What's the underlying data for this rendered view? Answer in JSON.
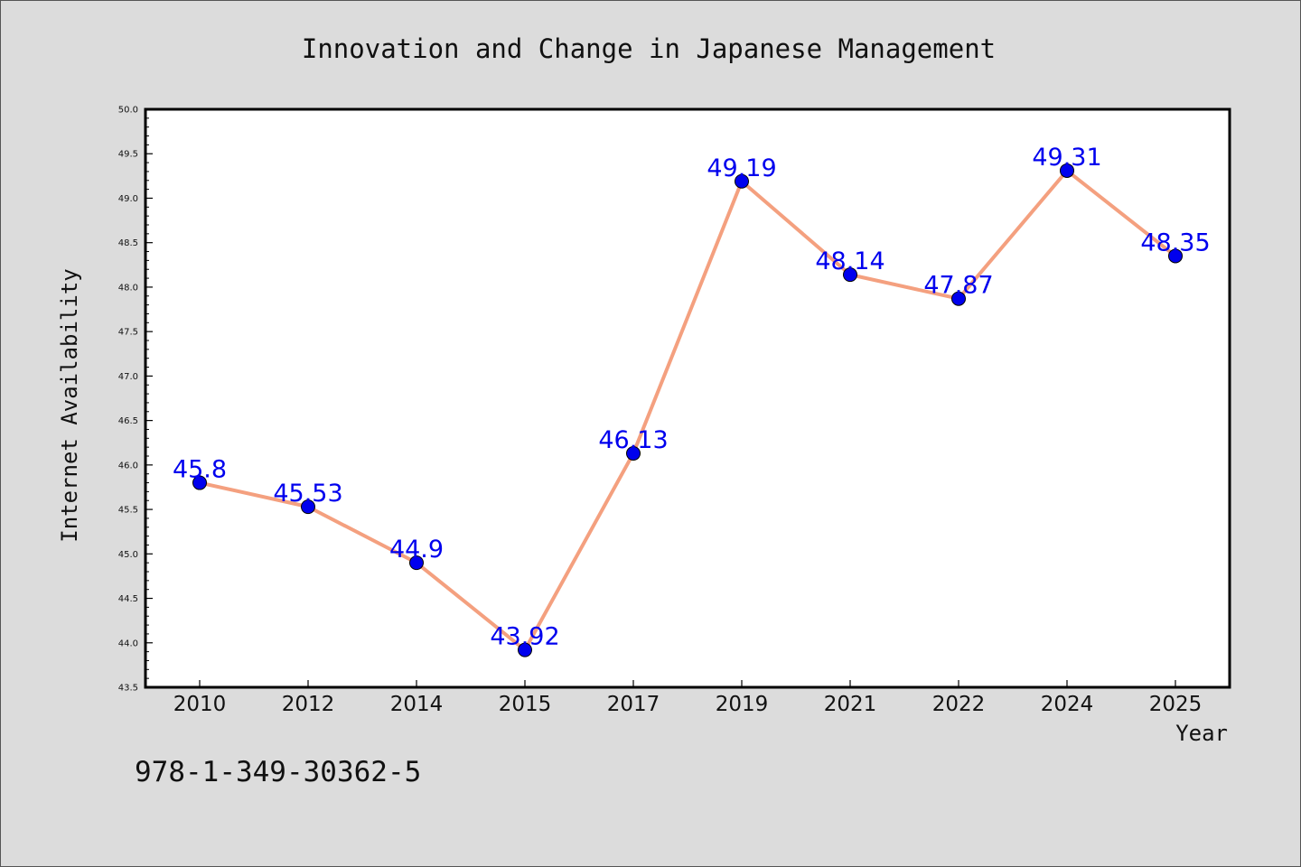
{
  "chart_data": {
    "type": "line",
    "title": "Innovation and Change in Japanese Management",
    "xlabel": "Year",
    "ylabel": "Internet Availability",
    "categories": [
      "2010",
      "2012",
      "2014",
      "2015",
      "2017",
      "2019",
      "2021",
      "2022",
      "2024",
      "2025"
    ],
    "series": [
      {
        "values": [
          45.8,
          45.53,
          44.9,
          43.92,
          46.13,
          49.19,
          48.14,
          47.87,
          49.31,
          48.35
        ],
        "data_labels": [
          "45.8",
          "45.53",
          "44.9",
          "43.92",
          "46.13",
          "49.19",
          "48.14",
          "47.87",
          "49.31",
          "48.35"
        ],
        "line_color": "#f4a07f",
        "marker_color": "#0000ee",
        "label_color": "#0000ee"
      }
    ],
    "ylim": [
      43.5,
      50.0
    ],
    "yticks": [
      "43.5",
      "44.0",
      "44.5",
      "45.0",
      "45.5",
      "46.0",
      "46.5",
      "47.0",
      "47.5",
      "48.0",
      "48.5",
      "49.0",
      "49.5",
      "50.0"
    ],
    "grid": false,
    "legend": "none"
  },
  "footnote": "978-1-349-30362-5",
  "colors": {
    "background": "#dcdcdc",
    "plot_background": "#ffffff",
    "axis": "#000000"
  }
}
